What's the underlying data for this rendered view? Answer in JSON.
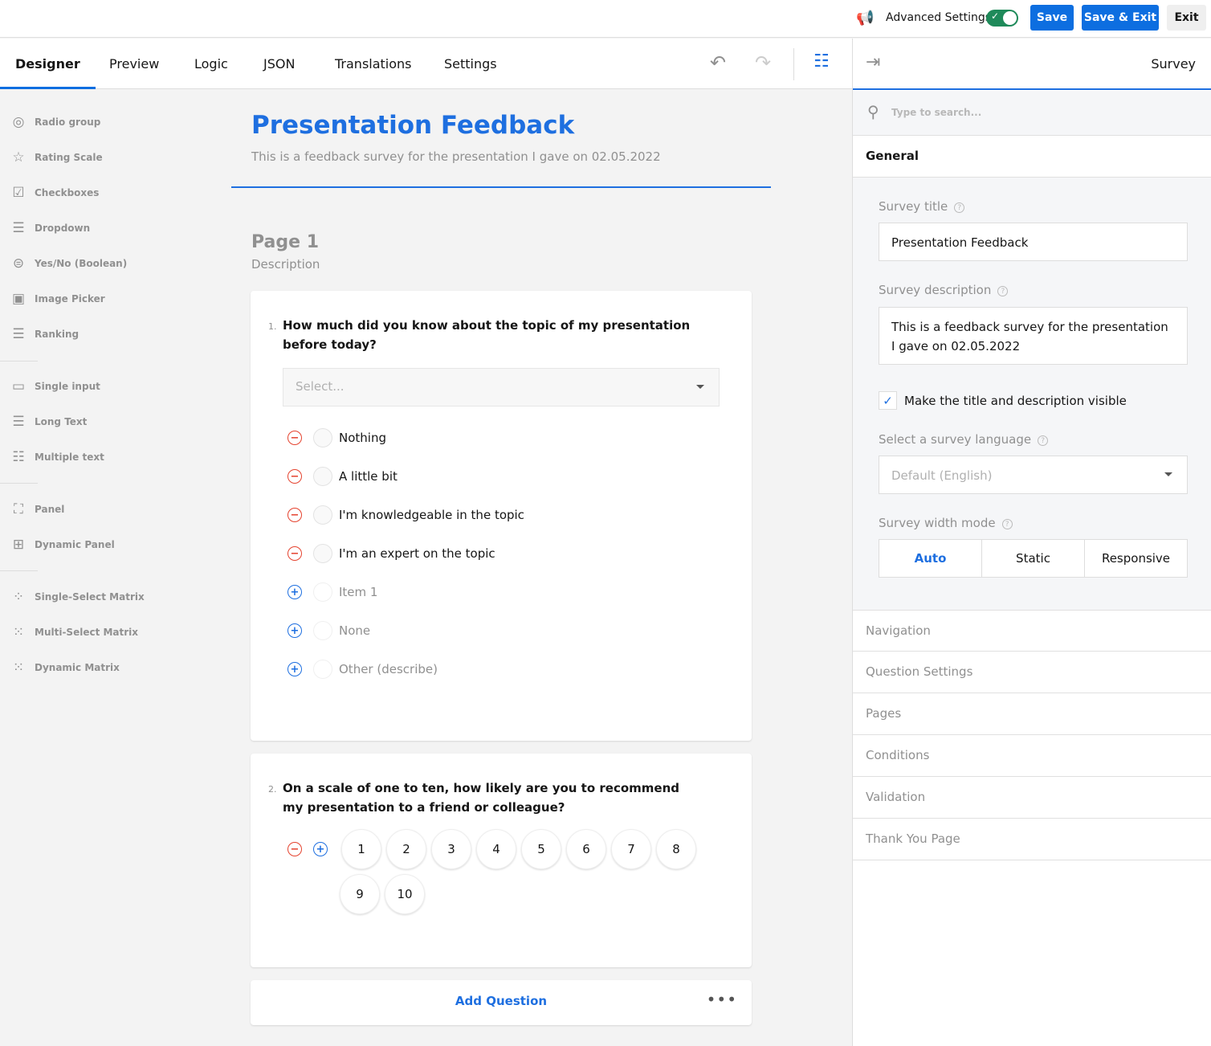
{
  "topbar": {
    "advanced_settings": "Advanced Settings",
    "advanced_on": true,
    "save": "Save",
    "save_exit": "Save & Exit",
    "exit": "Exit"
  },
  "tabs": [
    "Designer",
    "Preview",
    "Logic",
    "JSON",
    "Translations",
    "Settings"
  ],
  "toolbox": [
    {
      "label": "Radio group",
      "icon": "radio-icon",
      "g": "◎"
    },
    {
      "label": "Rating Scale",
      "icon": "star-icon",
      "g": "☆"
    },
    {
      "label": "Checkboxes",
      "icon": "checkbox-icon",
      "g": "☑"
    },
    {
      "label": "Dropdown",
      "icon": "dropdown-icon",
      "g": "☰"
    },
    {
      "label": "Yes/No (Boolean)",
      "icon": "boolean-icon",
      "g": "⊜"
    },
    {
      "label": "Image Picker",
      "icon": "image-icon",
      "g": "▣"
    },
    {
      "label": "Ranking",
      "icon": "ranking-icon",
      "g": "☰"
    },
    {
      "label": "Single input",
      "icon": "single-input-icon",
      "g": "▭"
    },
    {
      "label": "Long Text",
      "icon": "long-text-icon",
      "g": "☰"
    },
    {
      "label": "Multiple text",
      "icon": "multiple-text-icon",
      "g": "☷"
    },
    {
      "label": "Panel",
      "icon": "panel-icon",
      "g": "⛶"
    },
    {
      "label": "Dynamic Panel",
      "icon": "dynamic-panel-icon",
      "g": "⊞"
    },
    {
      "label": "Single-Select Matrix",
      "icon": "single-matrix-icon",
      "g": "⁘"
    },
    {
      "label": "Multi-Select Matrix",
      "icon": "multi-matrix-icon",
      "g": "⁙"
    },
    {
      "label": "Dynamic Matrix",
      "icon": "dynamic-matrix-icon",
      "g": "⁙"
    }
  ],
  "survey": {
    "title": "Presentation Feedback",
    "description": "This is a feedback survey for the presentation I gave on 02.05.2022",
    "page": {
      "title": "Page 1",
      "description": "Description"
    },
    "q1": {
      "number": "1.",
      "text": "How much did you know about the topic of my presentation before today?",
      "placeholder": "Select...",
      "choices": [
        "Nothing",
        "A little bit",
        "I'm knowledgeable in the topic",
        "I'm an expert on the topic"
      ],
      "extras": [
        "Item 1",
        "None",
        "Other (describe)"
      ]
    },
    "q2": {
      "number": "2.",
      "text": "On a scale of one to ten, how likely are you to recommend my presentation to a friend or colleague?",
      "rates": [
        "1",
        "2",
        "3",
        "4",
        "5",
        "6",
        "7",
        "8",
        "9",
        "10"
      ]
    },
    "add_question": "Add Question"
  },
  "panel": {
    "title": "Survey",
    "search_placeholder": "Type to search...",
    "general": "General",
    "survey_title_label": "Survey title",
    "survey_title_value": "Presentation Feedback",
    "survey_desc_label": "Survey description",
    "survey_desc_value": "This is a feedback survey for the presentation I gave on 02.05.2022",
    "visible_label": "Make the title and description visible",
    "visible_checked": true,
    "language_label": "Select a survey language",
    "language_value": "Default (English)",
    "width_label": "Survey width mode",
    "width_options": [
      "Auto",
      "Static",
      "Responsive"
    ],
    "width_selected": "Auto",
    "categories": [
      "Navigation",
      "Question Settings",
      "Pages",
      "Conditions",
      "Validation",
      "Thank You Page"
    ]
  },
  "colors": {
    "accent": "#1e6fe0",
    "remove": "#e5432f",
    "toggle": "#1f8a5a"
  }
}
